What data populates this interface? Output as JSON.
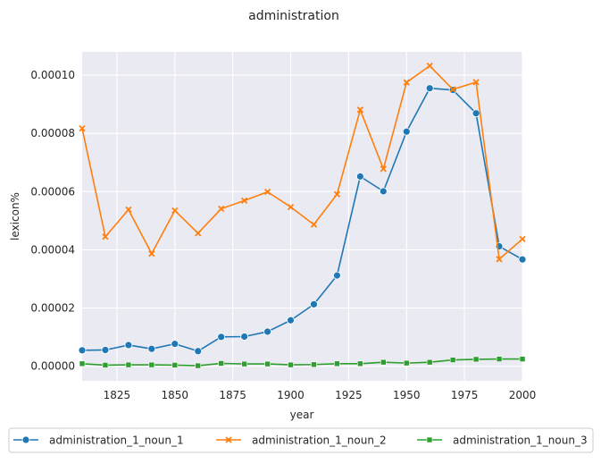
{
  "chart_data": {
    "type": "line",
    "title": "administration",
    "xlabel": "year",
    "ylabel": "lexicon%",
    "xlim": [
      1810,
      2000
    ],
    "ylim": [
      -5e-06,
      0.000108
    ],
    "x_ticks": [
      1825,
      1850,
      1875,
      1900,
      1925,
      1950,
      1975,
      2000
    ],
    "x_tick_labels": [
      "1825",
      "1850",
      "1875",
      "1900",
      "1925",
      "1950",
      "1975",
      "2000"
    ],
    "y_ticks": [
      0,
      2e-05,
      4e-05,
      6e-05,
      8e-05,
      0.0001
    ],
    "y_tick_labels": [
      "0.00000",
      "0.00002",
      "0.00004",
      "0.00006",
      "0.00008",
      "0.00010"
    ],
    "grid": true,
    "legend_position": "bottom",
    "x": [
      1810,
      1820,
      1830,
      1840,
      1850,
      1860,
      1870,
      1880,
      1890,
      1900,
      1910,
      1920,
      1930,
      1940,
      1950,
      1960,
      1970,
      1980,
      1990,
      2000
    ],
    "series": [
      {
        "name": "administration_1_noun_1",
        "color": "#1f77b4",
        "marker": "circle",
        "values": [
          5.5e-06,
          5.6e-06,
          7.3e-06,
          6e-06,
          7.7e-06,
          5.2e-06,
          1.01e-05,
          1.02e-05,
          1.19e-05,
          1.58e-05,
          2.13e-05,
          3.12e-05,
          6.52e-05,
          6.01e-05,
          8.06e-05,
          9.55e-05,
          9.49e-05,
          8.69e-05,
          4.12e-05,
          3.67e-05
        ]
      },
      {
        "name": "administration_1_noun_2",
        "color": "#ff7f0e",
        "marker": "x",
        "values": [
          8.17e-05,
          4.45e-05,
          5.38e-05,
          3.87e-05,
          5.35e-05,
          4.57e-05,
          5.41e-05,
          5.69e-05,
          5.99e-05,
          5.47e-05,
          4.87e-05,
          5.91e-05,
          8.81e-05,
          6.78e-05,
          9.75e-05,
          0.0001032,
          9.51e-05,
          9.76e-05,
          3.68e-05,
          4.37e-05
        ]
      },
      {
        "name": "administration_1_noun_3",
        "color": "#2ca02c",
        "marker": "square",
        "values": [
          9e-07,
          4e-07,
          5e-07,
          5e-07,
          4e-07,
          2e-07,
          1e-06,
          8e-07,
          8e-07,
          5e-07,
          6e-07,
          9e-07,
          9e-07,
          1.4e-06,
          1.1e-06,
          1.4e-06,
          2.2e-06,
          2.4e-06,
          2.5e-06,
          2.5e-06
        ]
      }
    ]
  }
}
